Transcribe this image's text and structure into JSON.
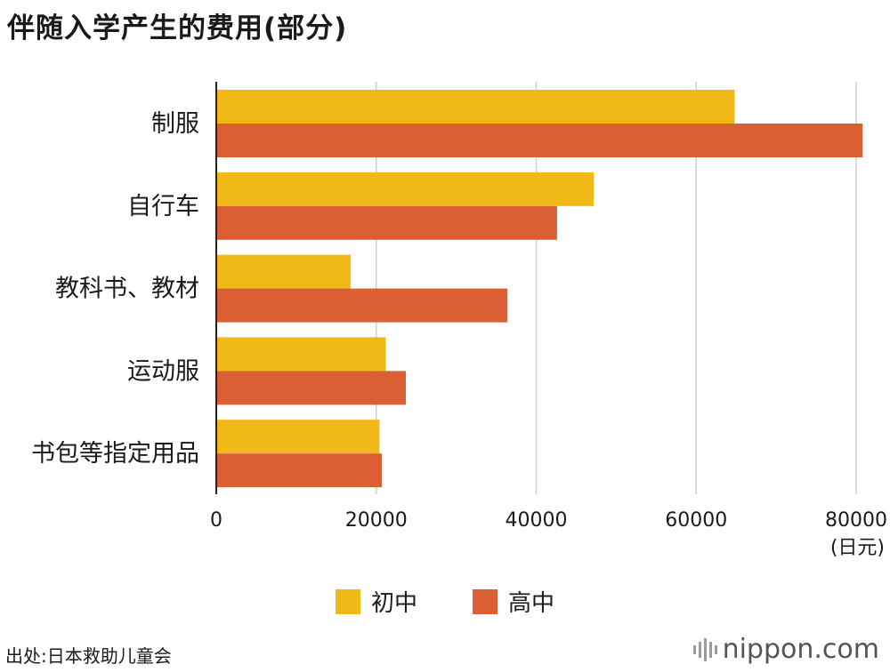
{
  "title": "伴随入学产生的费用(部分)",
  "unit": "(日元)",
  "source": "出处:日本救助儿童会",
  "brand": "nippon.com",
  "chart_data": {
    "type": "bar",
    "orientation": "horizontal",
    "title": "伴随入学产生的费用(部分)",
    "categories": [
      "制服",
      "自行车",
      "教科书、教材",
      "运动服",
      "书包等指定用品"
    ],
    "series": [
      {
        "name": "初中",
        "color": "#f0b917",
        "values": [
          64800,
          47200,
          16800,
          21200,
          20400
        ]
      },
      {
        "name": "高中",
        "color": "#db5f32",
        "values": [
          80800,
          42600,
          36400,
          23700,
          20700
        ]
      }
    ],
    "xlim": [
      0,
      80000
    ],
    "xticks": [
      "0",
      "20000",
      "40000",
      "60000",
      "80000"
    ],
    "xlabel": "(日元)",
    "grid": "vertical",
    "legend_position": "bottom-center"
  }
}
